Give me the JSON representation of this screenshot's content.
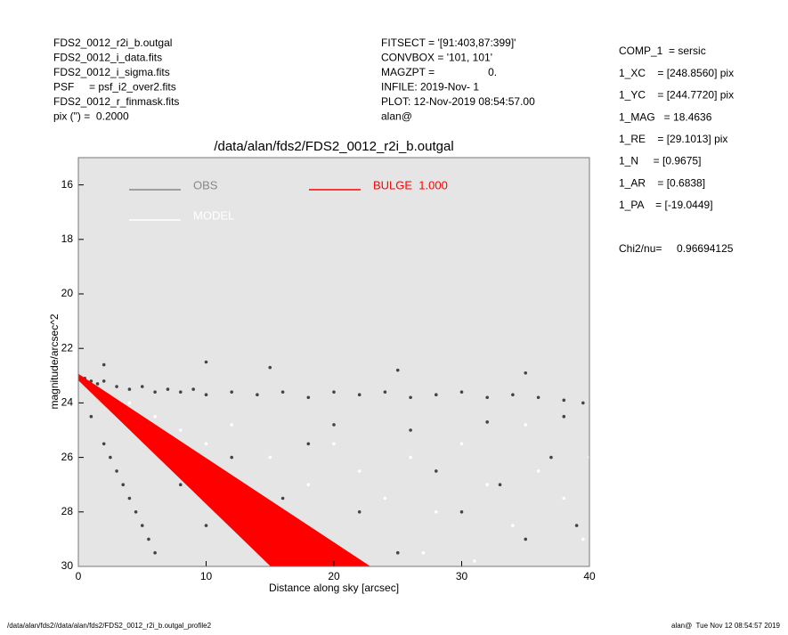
{
  "header": {
    "left": [
      "FDS2_0012_r2i_b.outgal",
      "FDS2_0012_i_data.fits",
      "FDS2_0012_i_sigma.fits",
      "PSF     = psf_i2_over2.fits",
      "FDS2_0012_r_finmask.fits",
      "pix (\") =  0.2000"
    ],
    "middle": [
      "FITSECT = '[91:403,87:399]'",
      "CONVBOX = '101, 101'",
      "MAGZPT =                  0.",
      "INFILE: 2019-Nov- 1",
      "PLOT: 12-Nov-2019 08:54:57.00",
      "alan@"
    ],
    "params": [
      "COMP_1  = sersic",
      "1_XC    = [248.8560] pix",
      "1_YC    = [244.7720] pix",
      "1_MAG   = 18.4636",
      "1_RE    = [29.1013] pix",
      "1_N     = [0.9675]",
      "1_AR    = [0.6838]",
      "1_PA    = [-19.0449]"
    ],
    "chi2": "Chi2/nu=     0.96694125"
  },
  "footer": {
    "left": "/data/alan/fds2//data/alan/fds2/FDS2_0012_r2i_b.outgal_profile2",
    "right": "alan@  Tue Nov 12 08:54:57 2019"
  },
  "chart_data": {
    "type": "scatter",
    "title": "/data/alan/fds2/FDS2_0012_r2i_b.outgal",
    "xlabel": "Distance along sky [arcsec]",
    "ylabel": "magnitude/arcsec^2",
    "xlim": [
      0,
      40
    ],
    "ylim": [
      30,
      15
    ],
    "xticks": [
      0,
      10,
      20,
      30,
      40
    ],
    "yticks": [
      16,
      18,
      20,
      22,
      24,
      26,
      28,
      30
    ],
    "background": "#e5e5e5",
    "series": [
      {
        "name": "OBS",
        "color": "#444444",
        "legend_color": "#888888",
        "x": [
          0.5,
          1,
          1.5,
          2,
          3,
          4,
          5,
          6,
          7,
          8,
          9,
          10,
          12,
          14,
          16,
          18,
          20,
          22,
          24,
          26,
          28,
          30,
          32,
          34,
          36,
          38,
          39.5,
          1,
          2,
          3,
          4,
          5,
          6,
          2.5,
          3.5,
          4.5,
          5.5,
          8,
          10,
          12,
          14,
          16,
          18,
          22,
          25,
          28,
          30,
          33,
          35,
          37,
          39,
          20,
          26,
          32,
          38,
          2,
          10,
          15,
          25,
          35
        ],
        "values": [
          23.1,
          23.2,
          23.3,
          23.2,
          23.4,
          23.5,
          23.4,
          23.6,
          23.5,
          23.6,
          23.5,
          23.7,
          23.6,
          23.7,
          23.6,
          23.8,
          23.6,
          23.7,
          23.6,
          23.8,
          23.7,
          23.6,
          23.8,
          23.7,
          23.8,
          23.9,
          24,
          24.5,
          25.5,
          26.5,
          27.5,
          28.5,
          29.5,
          26,
          27,
          28,
          29,
          27,
          28.5,
          26,
          29,
          27.5,
          25.5,
          28,
          29.5,
          26.5,
          28,
          27,
          29,
          26,
          28.5,
          24.8,
          25,
          24.7,
          24.5,
          22.6,
          22.5,
          22.7,
          22.8,
          22.9
        ]
      },
      {
        "name": "MODEL",
        "color": "#ffffff",
        "x": [
          4,
          6,
          7,
          8,
          10,
          12,
          13,
          15,
          16,
          18,
          20,
          22,
          24,
          26,
          27,
          28,
          30,
          31,
          32,
          34,
          35,
          36,
          38,
          39.5,
          40
        ],
        "values": [
          24,
          24.5,
          26,
          25,
          25.5,
          24.8,
          27.5,
          26,
          28.5,
          27,
          25.5,
          26.5,
          27.5,
          26,
          29.5,
          28,
          25.5,
          29.8,
          27,
          28.5,
          24.8,
          26.5,
          27.5,
          29,
          26
        ]
      },
      {
        "name": "BULGE  1.000",
        "color": "#ff0000",
        "kind": "area",
        "x": [
          0,
          22.8,
          15.1,
          0
        ],
        "values": [
          22.95,
          30,
          30,
          23.15
        ]
      }
    ]
  }
}
